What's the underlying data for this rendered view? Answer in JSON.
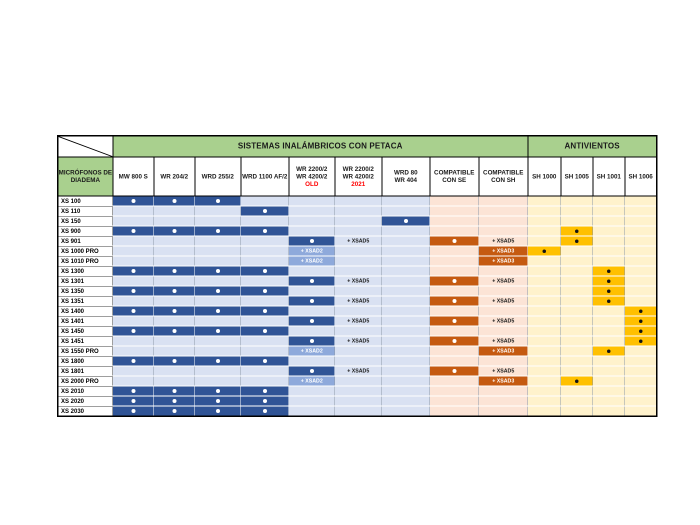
{
  "table": {
    "corner_label": "MICRÓFONOS DE DIADEMA",
    "group_headers": [
      {
        "label": "SISTEMAS INALÁMBRICOS CON PETACA",
        "span": 9
      },
      {
        "label": "ANTIVIENTOS",
        "span": 4
      }
    ],
    "columns": [
      {
        "lines": [
          "MW 800 S"
        ]
      },
      {
        "lines": [
          "WR 204/2"
        ]
      },
      {
        "lines": [
          "WRD 255/2"
        ]
      },
      {
        "lines": [
          "WRD 1100 AF/2"
        ]
      },
      {
        "lines": [
          "WR 2200/2",
          "WR 4200/2"
        ],
        "sub": "OLD"
      },
      {
        "lines": [
          "WR 2200/2",
          "WR 4200/2"
        ],
        "sub": "2021"
      },
      {
        "lines": [
          "WRD 80",
          "WR 404"
        ]
      },
      {
        "lines": [
          "COMPATIBLE",
          "CON SE"
        ]
      },
      {
        "lines": [
          "COMPATIBLE",
          "CON SH"
        ]
      },
      {
        "lines": [
          "SH 1000"
        ]
      },
      {
        "lines": [
          "SH 1005"
        ]
      },
      {
        "lines": [
          "SH 1001"
        ]
      },
      {
        "lines": [
          "SH 1006"
        ]
      }
    ],
    "cell_labels": {
      "D": "compatible-dot",
      "5": "+ XSAD5",
      "3": "+ XSAD3",
      "2": "+ XSAD2"
    },
    "rows": [
      {
        "label": "XS 100",
        "cells": [
          "D",
          "D",
          "D",
          ".",
          ".",
          ".",
          ".",
          ".",
          ".",
          ".",
          ".",
          ".",
          "."
        ]
      },
      {
        "label": "XS 110",
        "cells": [
          ".",
          ".",
          ".",
          "D",
          ".",
          ".",
          ".",
          ".",
          ".",
          ".",
          ".",
          ".",
          "."
        ]
      },
      {
        "label": "XS 150",
        "cells": [
          ".",
          ".",
          ".",
          ".",
          ".",
          ".",
          "D",
          ".",
          ".",
          ".",
          ".",
          ".",
          "."
        ]
      },
      {
        "label": "XS 900",
        "cells": [
          "D",
          "D",
          "D",
          "D",
          ".",
          ".",
          ".",
          ".",
          ".",
          ".",
          "D",
          ".",
          "."
        ]
      },
      {
        "label": "XS 901",
        "cells": [
          ".",
          ".",
          ".",
          ".",
          "D",
          "5",
          ".",
          "D",
          "5",
          ".",
          "D",
          ".",
          "."
        ]
      },
      {
        "label": "XS 1000 PRO",
        "cells": [
          ".",
          ".",
          ".",
          ".",
          "2",
          ".",
          ".",
          ".",
          "3",
          "D",
          ".",
          ".",
          "."
        ]
      },
      {
        "label": "XS 1010 PRO",
        "cells": [
          ".",
          ".",
          ".",
          ".",
          "2",
          ".",
          ".",
          ".",
          "3",
          ".",
          ".",
          ".",
          "."
        ]
      },
      {
        "label": "XS 1300",
        "cells": [
          "D",
          "D",
          "D",
          "D",
          ".",
          ".",
          ".",
          ".",
          ".",
          ".",
          ".",
          "D",
          "."
        ]
      },
      {
        "label": "XS 1301",
        "cells": [
          ".",
          ".",
          ".",
          ".",
          "D",
          "5",
          ".",
          "D",
          "5",
          ".",
          ".",
          "D",
          "."
        ]
      },
      {
        "label": "XS 1350",
        "cells": [
          "D",
          "D",
          "D",
          "D",
          ".",
          ".",
          ".",
          ".",
          ".",
          ".",
          ".",
          "D",
          "."
        ]
      },
      {
        "label": "XS 1351",
        "cells": [
          ".",
          ".",
          ".",
          ".",
          "D",
          "5",
          ".",
          "D",
          "5",
          ".",
          ".",
          "D",
          "."
        ]
      },
      {
        "label": "XS 1400",
        "cells": [
          "D",
          "D",
          "D",
          "D",
          ".",
          ".",
          ".",
          ".",
          ".",
          ".",
          ".",
          ".",
          "D"
        ]
      },
      {
        "label": "XS 1401",
        "cells": [
          ".",
          ".",
          ".",
          ".",
          "D",
          "5",
          ".",
          "D",
          "5",
          ".",
          ".",
          ".",
          "D"
        ]
      },
      {
        "label": "XS 1450",
        "cells": [
          "D",
          "D",
          "D",
          "D",
          ".",
          ".",
          ".",
          ".",
          ".",
          ".",
          ".",
          ".",
          "D"
        ]
      },
      {
        "label": "XS 1451",
        "cells": [
          ".",
          ".",
          ".",
          ".",
          "D",
          "5",
          ".",
          "D",
          "5",
          ".",
          ".",
          ".",
          "D"
        ]
      },
      {
        "label": "XS 1550 PRO",
        "cells": [
          ".",
          ".",
          ".",
          ".",
          "2",
          ".",
          ".",
          ".",
          "3",
          ".",
          ".",
          "D",
          "."
        ]
      },
      {
        "label": "XS 1800",
        "cells": [
          "D",
          "D",
          "D",
          "D",
          ".",
          ".",
          ".",
          ".",
          ".",
          ".",
          ".",
          ".",
          "."
        ]
      },
      {
        "label": "XS 1801",
        "cells": [
          ".",
          ".",
          ".",
          ".",
          "D",
          "5",
          ".",
          "D",
          "5",
          ".",
          ".",
          ".",
          "."
        ]
      },
      {
        "label": "XS 2000 PRO",
        "cells": [
          ".",
          ".",
          ".",
          ".",
          "2",
          ".",
          ".",
          ".",
          "3",
          ".",
          "D",
          ".",
          "."
        ]
      },
      {
        "label": "XS 2010",
        "cells": [
          "D",
          "D",
          "D",
          "D",
          ".",
          ".",
          ".",
          ".",
          ".",
          ".",
          ".",
          ".",
          "."
        ]
      },
      {
        "label": "XS 2020",
        "cells": [
          "D",
          "D",
          "D",
          "D",
          ".",
          ".",
          ".",
          ".",
          ".",
          ".",
          ".",
          ".",
          "."
        ]
      },
      {
        "label": "XS 2030",
        "cells": [
          "D",
          "D",
          "D",
          "D",
          ".",
          ".",
          ".",
          ".",
          ".",
          ".",
          ".",
          ".",
          "."
        ]
      }
    ]
  },
  "colors": {
    "header_green": "#A9D08E",
    "blue_dark": "#305496",
    "blue_light": "#D9E1F2",
    "blue_medium": "#8EA9DB",
    "orange_dark": "#C55A11",
    "peach_light": "#FCE4D6",
    "yellow_light": "#FFF2CC",
    "yellow_dark": "#FFC000",
    "red_label": "#FF0000"
  }
}
